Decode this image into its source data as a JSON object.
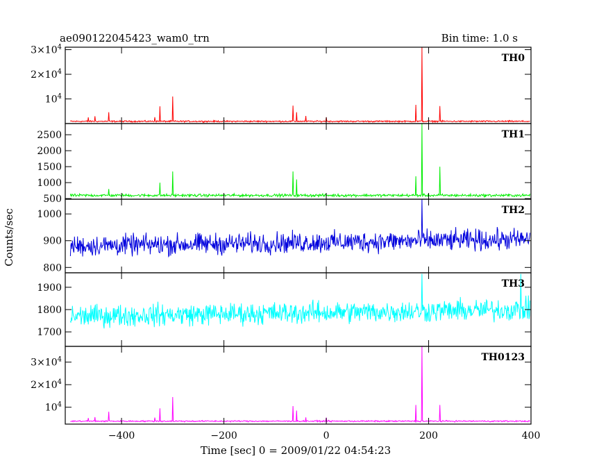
{
  "header": {
    "title": "ae090122045423_wam0_trn",
    "bin_time": "Bin time: 1.0 s"
  },
  "chart_data": {
    "type": "line",
    "ylabel": "Counts/sec",
    "xlabel": "Time [sec] 0 = 2009/01/22 04:54:23",
    "xlim": [
      -510,
      400
    ],
    "x_ticks": [
      -400,
      -200,
      0,
      200,
      400
    ],
    "x_tick_labels": [
      "−400",
      "−200",
      "0",
      "200",
      "400"
    ],
    "panels": [
      {
        "name": "TH0",
        "color": "#ff0000",
        "ylim": [
          0,
          31000
        ],
        "y_ticks": [
          {
            "value": 10000,
            "base": "10",
            "exp": "4"
          },
          {
            "value": 20000,
            "base": "2×10",
            "exp": "4"
          },
          {
            "value": 30000,
            "base": "3×10",
            "exp": "4"
          }
        ],
        "baseline": 900,
        "noise": 250,
        "spikes": [
          {
            "x": -465,
            "y": 2500
          },
          {
            "x": -452,
            "y": 3000
          },
          {
            "x": -425,
            "y": 4600
          },
          {
            "x": -335,
            "y": 2600
          },
          {
            "x": -325,
            "y": 7000
          },
          {
            "x": -300,
            "y": 11000
          },
          {
            "x": -65,
            "y": 7300
          },
          {
            "x": -58,
            "y": 4600
          },
          {
            "x": -40,
            "y": 3100
          },
          {
            "x": 0,
            "y": 2600
          },
          {
            "x": 175,
            "y": 7600
          },
          {
            "x": 187,
            "y": 31000
          },
          {
            "x": 222,
            "y": 7100
          }
        ]
      },
      {
        "name": "TH1",
        "color": "#00ee00",
        "ylim": [
          480,
          2850
        ],
        "y_ticks": [
          {
            "value": 500,
            "label": "500"
          },
          {
            "value": 1000,
            "label": "1000"
          },
          {
            "value": 1500,
            "label": "1500"
          },
          {
            "value": 2000,
            "label": "2000"
          },
          {
            "value": 2500,
            "label": "2500"
          }
        ],
        "baseline": 600,
        "noise": 35,
        "spikes": [
          {
            "x": -425,
            "y": 800
          },
          {
            "x": -325,
            "y": 1000
          },
          {
            "x": -300,
            "y": 1350
          },
          {
            "x": -65,
            "y": 1350
          },
          {
            "x": -58,
            "y": 1100
          },
          {
            "x": 175,
            "y": 1200
          },
          {
            "x": 187,
            "y": 2850
          },
          {
            "x": 222,
            "y": 1500
          }
        ]
      },
      {
        "name": "TH2",
        "color": "#0000dd",
        "ylim": [
          780,
          1055
        ],
        "y_ticks": [
          {
            "value": 800,
            "label": "800"
          },
          {
            "value": 900,
            "label": "900"
          },
          {
            "value": 1000,
            "label": "1000"
          }
        ],
        "baseline": 880,
        "trend_end": 905,
        "noise": 32,
        "spikes": [
          {
            "x": 187,
            "y": 1055
          }
        ]
      },
      {
        "name": "TH3",
        "color": "#00ffff",
        "ylim": [
          1635,
          1965
        ],
        "y_ticks": [
          {
            "value": 1700,
            "label": "1700"
          },
          {
            "value": 1800,
            "label": "1800"
          },
          {
            "value": 1900,
            "label": "1900"
          }
        ],
        "baseline": 1770,
        "trend_end": 1800,
        "noise": 40,
        "spikes": [
          {
            "x": 187,
            "y": 1960
          },
          {
            "x": 380,
            "y": 1960
          }
        ]
      },
      {
        "name": "TH0123",
        "color": "#ff00ff",
        "ylim": [
          2500,
          37000
        ],
        "y_ticks": [
          {
            "value": 10000,
            "base": "10",
            "exp": "4"
          },
          {
            "value": 20000,
            "base": "2×10",
            "exp": "4"
          },
          {
            "value": 30000,
            "base": "3×10",
            "exp": "4"
          }
        ],
        "baseline": 3800,
        "noise": 250,
        "spikes": [
          {
            "x": -465,
            "y": 5200
          },
          {
            "x": -452,
            "y": 5600
          },
          {
            "x": -425,
            "y": 8000
          },
          {
            "x": -335,
            "y": 5400
          },
          {
            "x": -325,
            "y": 9500
          },
          {
            "x": -300,
            "y": 14500
          },
          {
            "x": -65,
            "y": 10500
          },
          {
            "x": -58,
            "y": 8500
          },
          {
            "x": -40,
            "y": 5500
          },
          {
            "x": 0,
            "y": 5400
          },
          {
            "x": 175,
            "y": 11000
          },
          {
            "x": 187,
            "y": 37000
          },
          {
            "x": 222,
            "y": 11000
          }
        ]
      }
    ]
  }
}
